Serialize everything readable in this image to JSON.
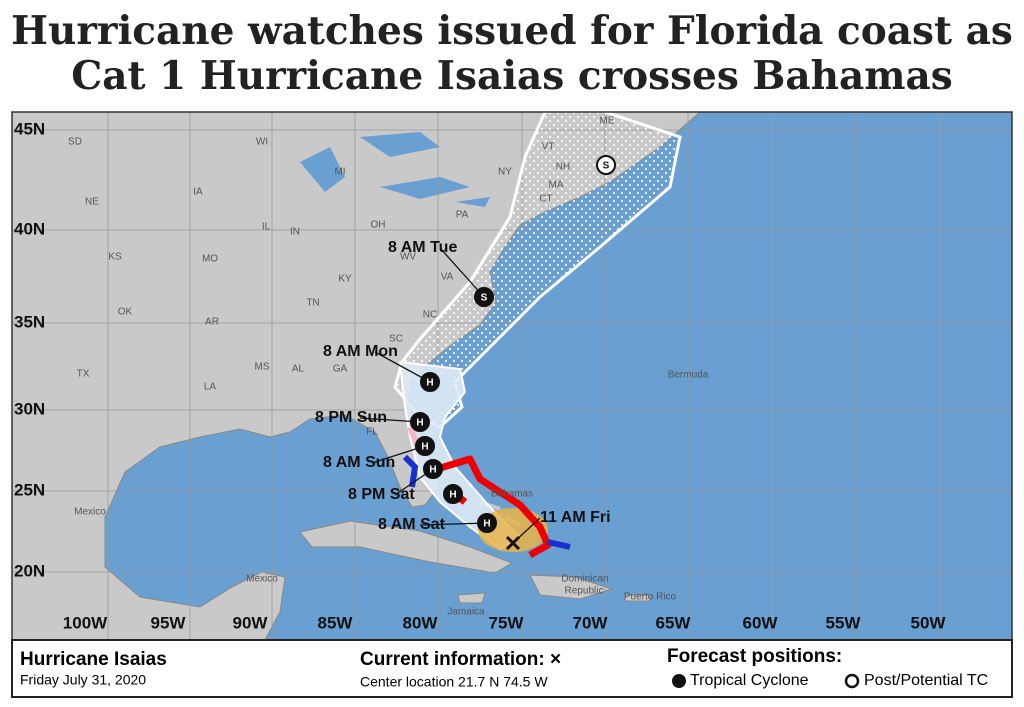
{
  "headline": [
    "Hurricane watches issued for Florida coast as",
    "Cat 1 Hurricane Isaias crosses Bahamas"
  ],
  "map": {
    "latitude_labels": [
      "45N",
      "40N",
      "35N",
      "30N",
      "25N",
      "20N"
    ],
    "longitude_labels": [
      "100W",
      "95W",
      "90W",
      "85W",
      "80W",
      "75W",
      "70W",
      "65W",
      "60W",
      "55W",
      "50W"
    ],
    "region_labels": [
      "SD",
      "NE",
      "IA",
      "KS",
      "MO",
      "OK",
      "AR",
      "TX",
      "LA",
      "MS",
      "AL",
      "GA",
      "TN",
      "KY",
      "IL",
      "IN",
      "OH",
      "WV",
      "VA",
      "NC",
      "PA",
      "NY",
      "MI",
      "WI",
      "VT",
      "NH",
      "ME",
      "MA",
      "CT",
      "FL",
      "SC",
      "Mexico",
      "Mexico",
      "Bermuda",
      "Bahamas",
      "Jamaica",
      "Dominican",
      "Republic",
      "Puerto Rico"
    ],
    "forecast_labels": [
      "8 AM Tue",
      "8 AM Mon",
      "8 PM Sun",
      "8 AM Sun",
      "8 PM Sat",
      "8 AM Sat",
      "11 AM Fri"
    ],
    "forecast_markers": [
      "S",
      "S",
      "H",
      "H",
      "H",
      "H",
      "H",
      "H"
    ]
  },
  "legend": {
    "storm_name": "Hurricane Isaias",
    "date": "Friday July 31, 2020",
    "current_heading": "Current information: ×",
    "center_location": "Center location 21.7 N 74.5 W",
    "forecast_heading": "Forecast positions:",
    "tropical_cyclone": "Tropical Cyclone",
    "post_potential": "Post/Potential TC"
  }
}
